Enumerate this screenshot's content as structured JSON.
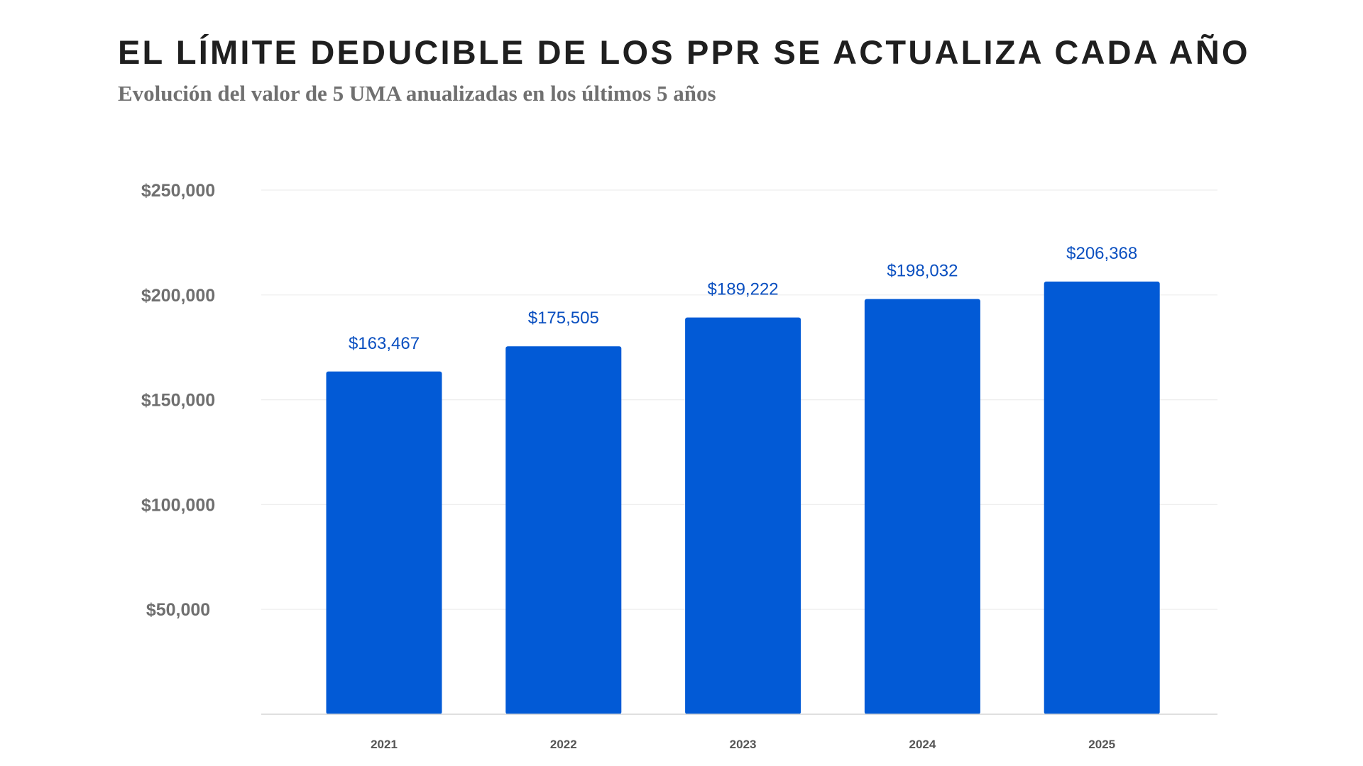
{
  "chart_data": {
    "type": "bar",
    "title": "EL LÍMITE DEDUCIBLE DE LOS PPR SE ACTUALIZA CADA AÑO",
    "subtitle": "Evolución del valor de 5 UMA anualizadas en los últimos 5 años",
    "xlabel": "",
    "ylabel": "",
    "categories": [
      "2021",
      "2022",
      "2023",
      "2024",
      "2025"
    ],
    "values": [
      163467,
      175505,
      189222,
      198032,
      206368
    ],
    "data_labels": [
      "$163,467",
      "$175,505",
      "$189,222",
      "$198,032",
      "$206,368"
    ],
    "ylim": [
      0,
      250000
    ],
    "yticks": [
      50000,
      100000,
      150000,
      200000,
      250000
    ],
    "ytick_labels": [
      "$50,000",
      "$100,000",
      "$150,000",
      "$200,000",
      "$250,000"
    ],
    "grid": true,
    "legend": "none",
    "colors": {
      "bar": "#025ad6",
      "data_label": "#0a4fc0",
      "grid": "#eeeeee",
      "baseline": "#d6d6d6"
    }
  }
}
